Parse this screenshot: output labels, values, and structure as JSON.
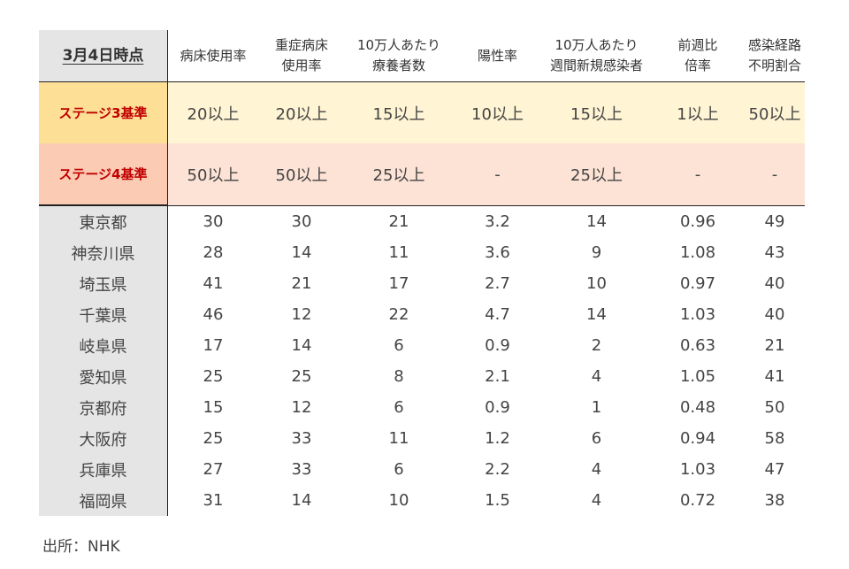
{
  "table": {
    "corner_label": "3月4日時点",
    "headers": [
      {
        "line1": "病床使用率",
        "line2": ""
      },
      {
        "line1": "重症病床",
        "line2": "使用率"
      },
      {
        "line1": "10万人あたり",
        "line2": "療養者数"
      },
      {
        "line1": "陽性率",
        "line2": ""
      },
      {
        "line1": "10万人あたり",
        "line2": "週間新規感染者"
      },
      {
        "line1": "前週比",
        "line2": "倍率"
      },
      {
        "line1": "感染経路",
        "line2": "不明割合"
      }
    ],
    "stages": [
      {
        "label": "ステージ3基準",
        "values": [
          "20以上",
          "20以上",
          "15以上",
          "10以上",
          "15以上",
          "1以上",
          "50以上"
        ]
      },
      {
        "label": "ステージ4基準",
        "values": [
          "50以上",
          "50以上",
          "25以上",
          "-",
          "25以上",
          "-",
          "-"
        ]
      }
    ],
    "rows": [
      {
        "pref": "東京都",
        "values": [
          "30",
          "30",
          "21",
          "3.2",
          "14",
          "0.96",
          "49"
        ]
      },
      {
        "pref": "神奈川県",
        "values": [
          "28",
          "14",
          "11",
          "3.6",
          "9",
          "1.08",
          "43"
        ]
      },
      {
        "pref": "埼玉県",
        "values": [
          "41",
          "21",
          "17",
          "2.7",
          "10",
          "0.97",
          "40"
        ]
      },
      {
        "pref": "千葉県",
        "values": [
          "46",
          "12",
          "22",
          "4.7",
          "14",
          "1.03",
          "40"
        ]
      },
      {
        "pref": "岐阜県",
        "values": [
          "17",
          "14",
          "6",
          "0.9",
          "2",
          "0.63",
          "21"
        ]
      },
      {
        "pref": "愛知県",
        "values": [
          "25",
          "25",
          "8",
          "2.1",
          "4",
          "1.05",
          "41"
        ]
      },
      {
        "pref": "京都府",
        "values": [
          "15",
          "12",
          "6",
          "0.9",
          "1",
          "0.48",
          "50"
        ]
      },
      {
        "pref": "大阪府",
        "values": [
          "25",
          "33",
          "11",
          "1.2",
          "6",
          "0.94",
          "58"
        ]
      },
      {
        "pref": "兵庫県",
        "values": [
          "27",
          "33",
          "6",
          "2.2",
          "4",
          "1.03",
          "47"
        ]
      },
      {
        "pref": "福岡県",
        "values": [
          "31",
          "14",
          "10",
          "1.5",
          "4",
          "0.72",
          "38"
        ]
      }
    ]
  },
  "source": "出所：NHK"
}
